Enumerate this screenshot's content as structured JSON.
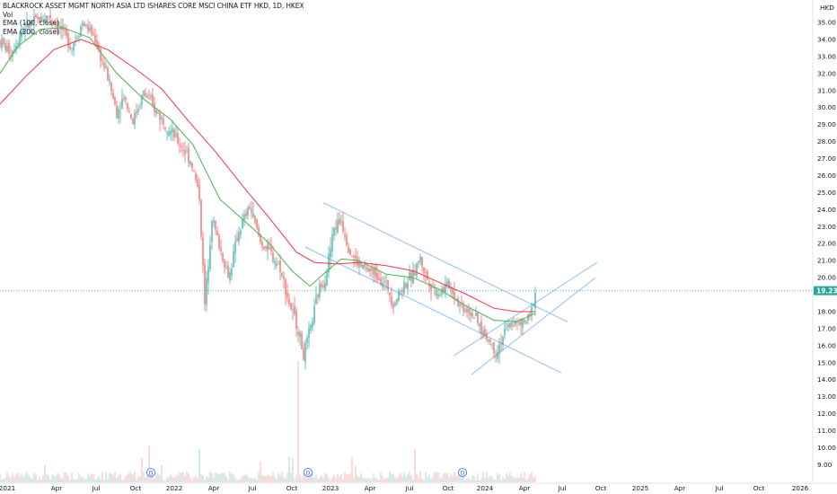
{
  "chart_data": {
    "type": "candlestick",
    "title": "BLACKROCK ASSET MGMT NORTH ASIA LTD ISHARES CORE MSCI CHINA ETF HKD, 1D, HKEX",
    "currency": "HKD",
    "legend": [
      "Vol",
      "EMA (100, close)",
      "EMA (200, close)"
    ],
    "last_price": "19.23",
    "y_ticks": [
      "35.00",
      "34.00",
      "33.00",
      "32.00",
      "31.00",
      "30.00",
      "29.00",
      "28.00",
      "27.00",
      "26.00",
      "25.00",
      "24.00",
      "23.00",
      "22.00",
      "21.00",
      "20.00",
      "18.00",
      "17.00",
      "16.00",
      "15.00",
      "14.00",
      "13.00",
      "12.00",
      "11.00",
      "10.00",
      "9.00"
    ],
    "x_ticks": [
      "2021",
      "Apr",
      "Jul",
      "Oct",
      "2022",
      "Apr",
      "Jul",
      "Oct",
      "2023",
      "Apr",
      "Jul",
      "Oct",
      "2024",
      "Apr",
      "Jul",
      "Oct",
      "2025",
      "Apr",
      "Jul",
      "Oct",
      "2026"
    ],
    "dividend_markers": [
      "D",
      "D",
      "D"
    ],
    "colors": {
      "up": "#26a69a",
      "down": "#ef5350",
      "ema100": "#4caf50",
      "ema200": "#f23645",
      "trend": "#90bff9",
      "price_tag": "#26a69a"
    },
    "price_path": [
      [
        0,
        33.9
      ],
      [
        12,
        33.2
      ],
      [
        25,
        34.6
      ],
      [
        40,
        35.1
      ],
      [
        55,
        35.4
      ],
      [
        65,
        34.8
      ],
      [
        80,
        33.6
      ],
      [
        92,
        35.0
      ],
      [
        105,
        34.2
      ],
      [
        112,
        33.0
      ],
      [
        120,
        31.8
      ],
      [
        130,
        29.7
      ],
      [
        138,
        30.7
      ],
      [
        148,
        29.2
      ],
      [
        160,
        30.9
      ],
      [
        172,
        29.9
      ],
      [
        185,
        29.0
      ],
      [
        195,
        28.2
      ],
      [
        205,
        27.5
      ],
      [
        213,
        26.8
      ],
      [
        222,
        24.8
      ],
      [
        228,
        18.4
      ],
      [
        236,
        23.6
      ],
      [
        245,
        21.7
      ],
      [
        255,
        20.0
      ],
      [
        265,
        22.6
      ],
      [
        278,
        24.2
      ],
      [
        290,
        22.1
      ],
      [
        300,
        21.5
      ],
      [
        312,
        20.6
      ],
      [
        322,
        18.5
      ],
      [
        332,
        17.0
      ],
      [
        338,
        15.4
      ],
      [
        345,
        16.8
      ],
      [
        355,
        19.3
      ],
      [
        362,
        20.0
      ],
      [
        372,
        22.9
      ],
      [
        380,
        23.4
      ],
      [
        390,
        21.5
      ],
      [
        400,
        20.7
      ],
      [
        410,
        20.4
      ],
      [
        420,
        20.2
      ],
      [
        432,
        19.4
      ],
      [
        438,
        18.5
      ],
      [
        450,
        19.6
      ],
      [
        460,
        20.1
      ],
      [
        467,
        21.2
      ],
      [
        475,
        20.0
      ],
      [
        487,
        19.1
      ],
      [
        500,
        19.6
      ],
      [
        512,
        18.4
      ],
      [
        525,
        18.0
      ],
      [
        535,
        17.0
      ],
      [
        545,
        16.3
      ],
      [
        552,
        15.6
      ],
      [
        560,
        16.6
      ],
      [
        570,
        17.4
      ],
      [
        580,
        17.2
      ],
      [
        590,
        17.6
      ],
      [
        596,
        19.23
      ]
    ],
    "ema100_path": [
      [
        0,
        32.0
      ],
      [
        20,
        33.6
      ],
      [
        45,
        34.6
      ],
      [
        70,
        34.7
      ],
      [
        100,
        34.1
      ],
      [
        130,
        32.0
      ],
      [
        160,
        30.5
      ],
      [
        190,
        29.3
      ],
      [
        215,
        27.8
      ],
      [
        245,
        24.6
      ],
      [
        275,
        23.2
      ],
      [
        300,
        22.0
      ],
      [
        325,
        20.4
      ],
      [
        345,
        19.5
      ],
      [
        360,
        20.2
      ],
      [
        380,
        21.1
      ],
      [
        400,
        21.0
      ],
      [
        430,
        20.2
      ],
      [
        460,
        20.0
      ],
      [
        490,
        19.3
      ],
      [
        520,
        18.3
      ],
      [
        550,
        17.5
      ],
      [
        575,
        17.4
      ],
      [
        596,
        17.9
      ]
    ],
    "ema200_path": [
      [
        0,
        30.2
      ],
      [
        30,
        31.9
      ],
      [
        60,
        33.4
      ],
      [
        90,
        34.0
      ],
      [
        120,
        33.4
      ],
      [
        150,
        32.3
      ],
      [
        180,
        31.1
      ],
      [
        210,
        29.2
      ],
      [
        240,
        27.4
      ],
      [
        270,
        25.4
      ],
      [
        300,
        23.5
      ],
      [
        330,
        21.5
      ],
      [
        350,
        20.9
      ],
      [
        375,
        20.8
      ],
      [
        400,
        20.9
      ],
      [
        430,
        20.7
      ],
      [
        460,
        20.4
      ],
      [
        490,
        19.7
      ],
      [
        520,
        19.0
      ],
      [
        550,
        18.2
      ],
      [
        575,
        18.0
      ],
      [
        596,
        18.0
      ]
    ],
    "trend_lines": [
      [
        [
          360,
          24.4
        ],
        [
          632,
          17.4
        ]
      ],
      [
        [
          340,
          21.8
        ],
        [
          625,
          14.4
        ]
      ],
      [
        [
          505,
          15.4
        ],
        [
          665,
          20.9
        ]
      ],
      [
        [
          525,
          14.3
        ],
        [
          663,
          20.0
        ]
      ]
    ]
  }
}
